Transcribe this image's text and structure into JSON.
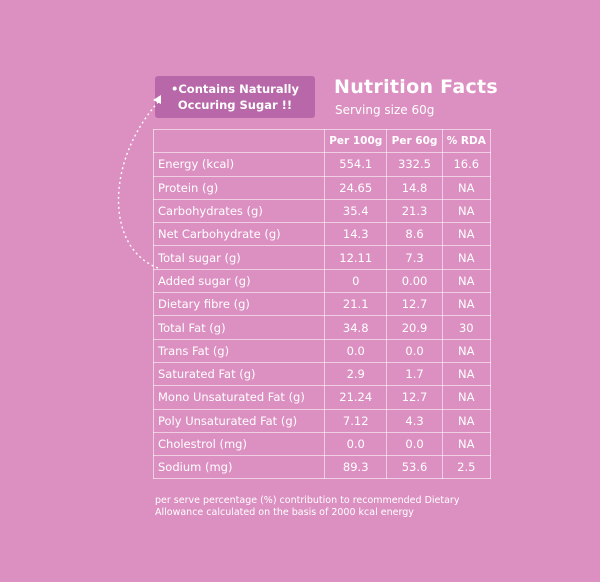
{
  "callout": {
    "line1": "•Contains Naturally",
    "line2": "Occuring Sugar !!"
  },
  "header": {
    "title": "Nutrition Facts",
    "serving": "Serving size 60g"
  },
  "columns": [
    "",
    "Per 100g",
    "Per 60g",
    "% RDA"
  ],
  "rows": [
    {
      "name": "Energy (kcal)",
      "per100": "554.1",
      "per60": "332.5",
      "rda": "16.6"
    },
    {
      "name": "Protein (g)",
      "per100": "24.65",
      "per60": "14.8",
      "rda": "NA"
    },
    {
      "name": "Carbohydrates (g)",
      "per100": "35.4",
      "per60": "21.3",
      "rda": "NA"
    },
    {
      "name": "Net Carbohydrate (g)",
      "per100": "14.3",
      "per60": "8.6",
      "rda": "NA"
    },
    {
      "name": "Total sugar (g)",
      "per100": "12.11",
      "per60": "7.3",
      "rda": "NA"
    },
    {
      "name": "Added sugar (g)",
      "per100": "0",
      "per60": "0.00",
      "rda": "NA"
    },
    {
      "name": "Dietary fibre (g)",
      "per100": "21.1",
      "per60": "12.7",
      "rda": "NA"
    },
    {
      "name": "Total Fat (g)",
      "per100": "34.8",
      "per60": "20.9",
      "rda": "30"
    },
    {
      "name": "Trans Fat (g)",
      "per100": "0.0",
      "per60": "0.0",
      "rda": "NA"
    },
    {
      "name": "Saturated Fat (g)",
      "per100": "2.9",
      "per60": "1.7",
      "rda": "NA"
    },
    {
      "name": "Mono Unsaturated Fat (g)",
      "per100": "21.24",
      "per60": "12.7",
      "rda": "NA"
    },
    {
      "name": "Poly Unsaturated Fat (g)",
      "per100": "7.12",
      "per60": "4.3",
      "rda": "NA"
    },
    {
      "name": "Cholestrol (mg)",
      "per100": "0.0",
      "per60": "0.0",
      "rda": "NA"
    },
    {
      "name": "Sodium (mg)",
      "per100": "89.3",
      "per60": "53.6",
      "rda": "2.5"
    }
  ],
  "footnote": {
    "line1": "per serve percentage (%) contribution to recommended Dietary",
    "line2": "Allowance calculated on the basis of 2000 kcal energy"
  },
  "colors": {
    "background": "#dc90c1",
    "callout": "#b867a9",
    "text": "#ffffff"
  },
  "icons": {
    "arrow": "dotted-curved-arrow-icon"
  }
}
